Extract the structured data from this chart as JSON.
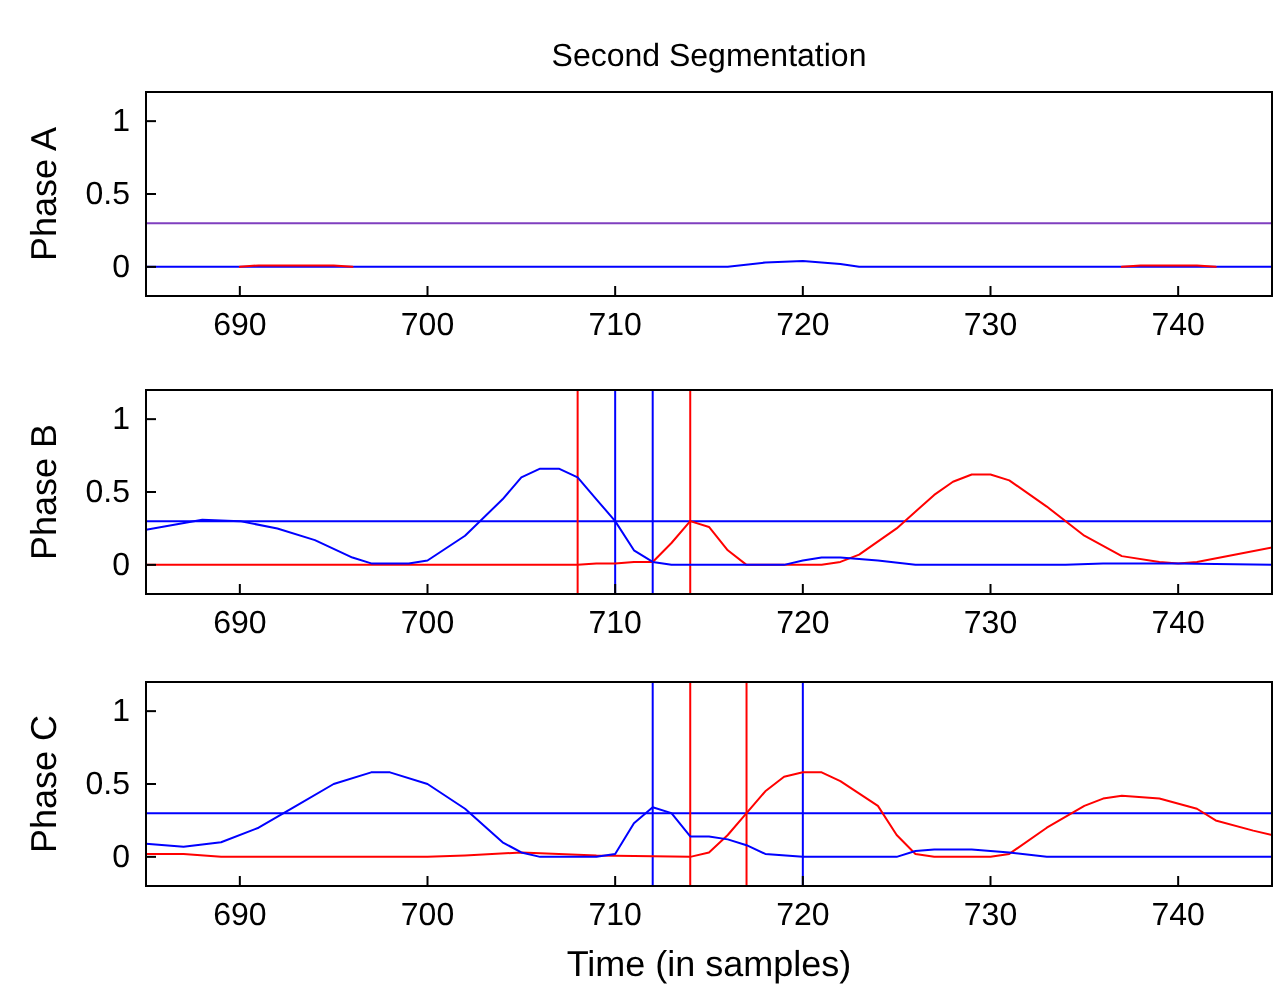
{
  "chart_data": [
    {
      "type": "line",
      "title": "Second Segmentation",
      "ylabel": "Phase A",
      "xlim": [
        685,
        745
      ],
      "xticks": [
        690,
        700,
        710,
        720,
        730,
        740
      ],
      "ylim": [
        -0.2,
        1.2
      ],
      "yticks": [
        0,
        0.5,
        1
      ],
      "grid": false,
      "series": [
        {
          "color": "#0000ff",
          "x": [
            685,
            716,
            718,
            720,
            722,
            723,
            745
          ],
          "values": [
            0,
            0,
            0.03,
            0.04,
            0.02,
            0,
            0
          ]
        },
        {
          "color": "#ff0000",
          "x": [
            690,
            691,
            695,
            696,
            710,
            737,
            738,
            741,
            742
          ],
          "values": [
            0,
            0.01,
            0.01,
            0,
            null,
            0,
            0.01,
            0.01,
            0
          ]
        }
      ],
      "ref_lines": [
        {
          "axis": "y",
          "value": 0.3,
          "color": "#7f3fbf"
        }
      ]
    },
    {
      "type": "line",
      "ylabel": "Phase B",
      "xlim": [
        685,
        745
      ],
      "xticks": [
        690,
        700,
        710,
        720,
        730,
        740
      ],
      "ylim": [
        -0.2,
        1.2
      ],
      "yticks": [
        0,
        0.5,
        1
      ],
      "grid": false,
      "series": [
        {
          "color": "#ff0000",
          "x": [
            685,
            708,
            709,
            710,
            711,
            712,
            713,
            714,
            715,
            716,
            717,
            721,
            722,
            723,
            725,
            727,
            728,
            729,
            730,
            731,
            733,
            735,
            737,
            739,
            740,
            741,
            743,
            745
          ],
          "values": [
            0,
            0,
            0.01,
            0.01,
            0.02,
            0.02,
            0.15,
            0.3,
            0.26,
            0.1,
            0,
            0,
            0.02,
            0.07,
            0.25,
            0.48,
            0.57,
            0.62,
            0.62,
            0.58,
            0.4,
            0.2,
            0.06,
            0.02,
            0.01,
            0.02,
            0.07,
            0.12
          ]
        },
        {
          "color": "#0000ff",
          "x": [
            685,
            688,
            690,
            692,
            694,
            696,
            697,
            699,
            700,
            702,
            704,
            705,
            706,
            707,
            708,
            709,
            710,
            711,
            712,
            713,
            719,
            720,
            721,
            722,
            724,
            726,
            734,
            736,
            740,
            745
          ],
          "values": [
            0.24,
            0.31,
            0.3,
            0.25,
            0.17,
            0.05,
            0.01,
            0.01,
            0.03,
            0.2,
            0.45,
            0.6,
            0.66,
            0.66,
            0.6,
            0.45,
            0.3,
            0.1,
            0.02,
            0,
            0,
            0.03,
            0.05,
            0.05,
            0.03,
            0,
            0,
            0.01,
            0.01,
            0
          ]
        }
      ],
      "ref_lines": [
        {
          "axis": "y",
          "value": 0.3,
          "color": "#0000ff"
        },
        {
          "axis": "x",
          "value": 708,
          "color": "#ff0000"
        },
        {
          "axis": "x",
          "value": 710,
          "color": "#0000ff"
        },
        {
          "axis": "x",
          "value": 712,
          "color": "#0000ff"
        },
        {
          "axis": "x",
          "value": 714,
          "color": "#ff0000"
        }
      ]
    },
    {
      "type": "line",
      "ylabel": "Phase C",
      "xlabel": "Time (in samples)",
      "xlim": [
        685,
        745
      ],
      "xticks": [
        690,
        700,
        710,
        720,
        730,
        740
      ],
      "ylim": [
        -0.2,
        1.2
      ],
      "yticks": [
        0,
        0.5,
        1
      ],
      "grid": false,
      "series": [
        {
          "color": "#ff0000",
          "x": [
            685,
            687,
            689,
            700,
            702,
            705,
            707,
            709,
            714,
            715,
            716,
            717,
            718,
            719,
            720,
            721,
            722,
            724,
            725,
            726,
            727,
            730,
            731,
            733,
            735,
            736,
            737,
            739,
            741,
            742,
            744,
            745
          ],
          "values": [
            0.02,
            0.02,
            0,
            0,
            0.01,
            0.03,
            0.02,
            0.01,
            0,
            0.03,
            0.15,
            0.3,
            0.45,
            0.55,
            0.58,
            0.58,
            0.52,
            0.35,
            0.15,
            0.02,
            0,
            0,
            0.02,
            0.2,
            0.35,
            0.4,
            0.42,
            0.4,
            0.33,
            0.25,
            0.18,
            0.15
          ]
        },
        {
          "color": "#0000ff",
          "x": [
            685,
            687,
            689,
            691,
            693,
            695,
            697,
            698,
            700,
            702,
            704,
            705,
            706,
            709,
            710,
            711,
            712,
            713,
            714,
            715,
            716,
            717,
            718,
            720,
            725,
            726,
            727,
            729,
            731,
            733,
            745
          ],
          "values": [
            0.09,
            0.07,
            0.1,
            0.2,
            0.35,
            0.5,
            0.58,
            0.58,
            0.5,
            0.33,
            0.1,
            0.03,
            0,
            0,
            0.02,
            0.23,
            0.34,
            0.3,
            0.14,
            0.14,
            0.12,
            0.08,
            0.02,
            0,
            0,
            0.04,
            0.05,
            0.05,
            0.03,
            0,
            0
          ]
        }
      ],
      "ref_lines": [
        {
          "axis": "y",
          "value": 0.3,
          "color": "#0000ff"
        },
        {
          "axis": "x",
          "value": 712,
          "color": "#0000ff"
        },
        {
          "axis": "x",
          "value": 714,
          "color": "#ff0000"
        },
        {
          "axis": "x",
          "value": 717,
          "color": "#ff0000"
        },
        {
          "axis": "x",
          "value": 720,
          "color": "#0000ff"
        }
      ]
    }
  ]
}
